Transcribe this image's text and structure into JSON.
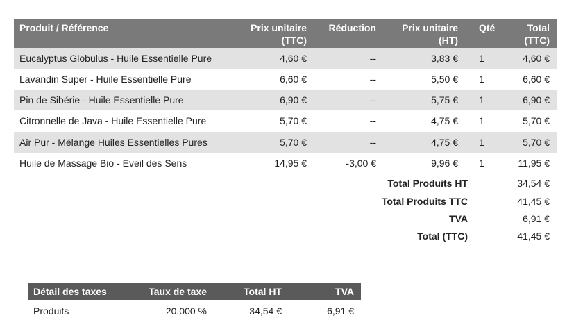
{
  "main_table": {
    "headers": {
      "product": "Produit / Référence",
      "unit_price_ttc_1": "Prix unitaire",
      "unit_price_ttc_2": "(TTC)",
      "discount": "Réduction",
      "unit_price_ht_1": "Prix unitaire",
      "unit_price_ht_2": "(HT)",
      "qty": "Qté",
      "total_1": "Total",
      "total_2": "(TTC)"
    },
    "rows": [
      {
        "name": "Eucalyptus Globulus - Huile Essentielle Pure",
        "price_ttc": "4,60 €",
        "discount": "--",
        "price_ht": "3,83 €",
        "qty": "1",
        "total": "4,60 €"
      },
      {
        "name": "Lavandin Super - Huile Essentielle Pure",
        "price_ttc": "6,60 €",
        "discount": "--",
        "price_ht": "5,50 €",
        "qty": "1",
        "total": "6,60 €"
      },
      {
        "name": "Pin de Sibérie - Huile Essentielle Pure",
        "price_ttc": "6,90 €",
        "discount": "--",
        "price_ht": "5,75 €",
        "qty": "1",
        "total": "6,90 €"
      },
      {
        "name": "Citronnelle de Java - Huile Essentielle Pure",
        "price_ttc": "5,70 €",
        "discount": "--",
        "price_ht": "4,75 €",
        "qty": "1",
        "total": "5,70 €"
      },
      {
        "name": "Air Pur - Mélange Huiles Essentielles Pures",
        "price_ttc": "5,70 €",
        "discount": "--",
        "price_ht": "4,75 €",
        "qty": "1",
        "total": "5,70 €"
      },
      {
        "name": "Huile de Massage Bio - Eveil des Sens",
        "price_ttc": "14,95 €",
        "discount": "-3,00 €",
        "price_ht": "9,96 €",
        "qty": "1",
        "total": "11,95 €"
      }
    ],
    "summary": [
      {
        "label": "Total Produits HT",
        "value": "34,54 €"
      },
      {
        "label": "Total Produits TTC",
        "value": "41,45 €"
      },
      {
        "label": "TVA",
        "value": "6,91 €"
      },
      {
        "label": "Total (TTC)",
        "value": "41,45 €"
      }
    ]
  },
  "tax_table": {
    "headers": {
      "detail": "Détail des taxes",
      "rate": "Taux de taxe",
      "total_ht": "Total HT",
      "tva": "TVA"
    },
    "rows": [
      {
        "detail": "Produits",
        "rate": "20.000 %",
        "total_ht": "34,54 €",
        "tva": "6,91 €"
      }
    ]
  }
}
